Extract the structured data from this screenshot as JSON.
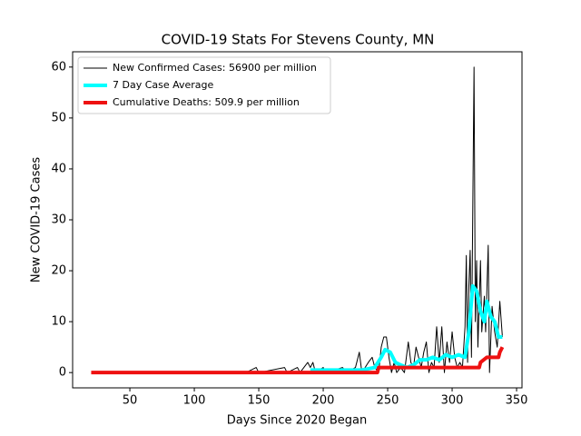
{
  "chart_data": {
    "type": "line",
    "title": "COVID-19 Stats For Stevens County, MN",
    "xlabel": "Days Since 2020 Began",
    "ylabel": "New COVID-19 Cases",
    "xlim": [
      5.6,
      354.2
    ],
    "ylim": [
      -3,
      63
    ],
    "xticks": [
      50,
      100,
      150,
      200,
      250,
      300,
      350
    ],
    "yticks": [
      0,
      10,
      20,
      30,
      40,
      50,
      60
    ],
    "legend": "upper left",
    "series": [
      {
        "name": "New Confirmed Cases: 56900 per million",
        "color": "#000000",
        "width": 1,
        "x": [
          140,
          148,
          150,
          170,
          172,
          180,
          182,
          188,
          190,
          192,
          194,
          200,
          202,
          215,
          218,
          225,
          228,
          230,
          235,
          238,
          240,
          243,
          245,
          247,
          249,
          251,
          253,
          255,
          257,
          260,
          263,
          266,
          268,
          270,
          272,
          274,
          276,
          278,
          280,
          282,
          284,
          286,
          288,
          290,
          292,
          294,
          296,
          298,
          300,
          302,
          304,
          306,
          308,
          310,
          311,
          312,
          313,
          314,
          315,
          317,
          318,
          319,
          320,
          322,
          323,
          325,
          326,
          328,
          329,
          331,
          333,
          335,
          337,
          339
        ],
        "values": [
          0,
          1,
          0,
          1,
          0,
          1,
          0,
          2,
          1,
          2,
          0,
          1,
          0,
          1,
          0,
          1,
          4,
          0,
          2,
          3,
          1,
          0,
          5,
          7,
          7,
          3,
          0,
          2,
          0,
          1,
          0,
          6,
          2,
          1,
          5,
          3,
          1,
          4,
          6,
          0,
          2,
          1,
          9,
          2,
          9,
          0,
          6,
          2,
          8,
          3,
          1,
          2,
          1,
          9,
          23,
          2,
          17,
          24,
          3,
          60,
          10,
          22,
          5,
          22,
          8,
          15,
          8,
          25,
          0,
          13,
          8,
          5,
          14,
          7
        ]
      },
      {
        "name": "7 Day Case Average",
        "color": "#00ffff",
        "width": 4,
        "x": [
          190,
          200,
          210,
          220,
          230,
          240,
          245,
          248,
          252,
          256,
          260,
          265,
          270,
          275,
          280,
          285,
          290,
          295,
          300,
          305,
          310,
          313,
          316,
          319,
          322,
          325,
          327,
          330,
          333,
          336,
          339
        ],
        "values": [
          0.5,
          0.5,
          0.5,
          0.5,
          0.5,
          1,
          3,
          4.5,
          4,
          2,
          1.5,
          1,
          1.5,
          2.5,
          2.5,
          3,
          2.5,
          3.5,
          3,
          3.5,
          3,
          8,
          17,
          16,
          12,
          10,
          14,
          11,
          10,
          7,
          7
        ]
      },
      {
        "name": "Cumulative Deaths: 509.9 per million",
        "color": "#ee1111",
        "width": 4,
        "x": [
          20,
          242,
          243,
          321,
          322,
          327,
          336,
          337,
          339
        ],
        "values": [
          0,
          0,
          1,
          1,
          2,
          3,
          3,
          4,
          5
        ]
      }
    ]
  }
}
